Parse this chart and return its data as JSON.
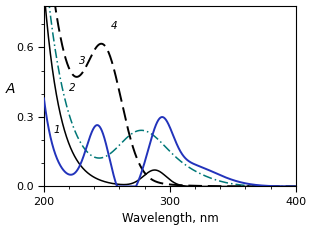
{
  "title": "",
  "xlabel": "Wavelength, nm",
  "ylabel": "A",
  "xlim": [
    200,
    400
  ],
  "ylim": [
    0,
    0.78
  ],
  "yticks": [
    0,
    0.3,
    0.6
  ],
  "xticks": [
    200,
    300,
    400
  ],
  "bg_color": "#ffffff",
  "curve1_color": "#2233bb",
  "curve2_color": "#000000",
  "curve3_color": "#007777",
  "curve4_color": "#000000"
}
